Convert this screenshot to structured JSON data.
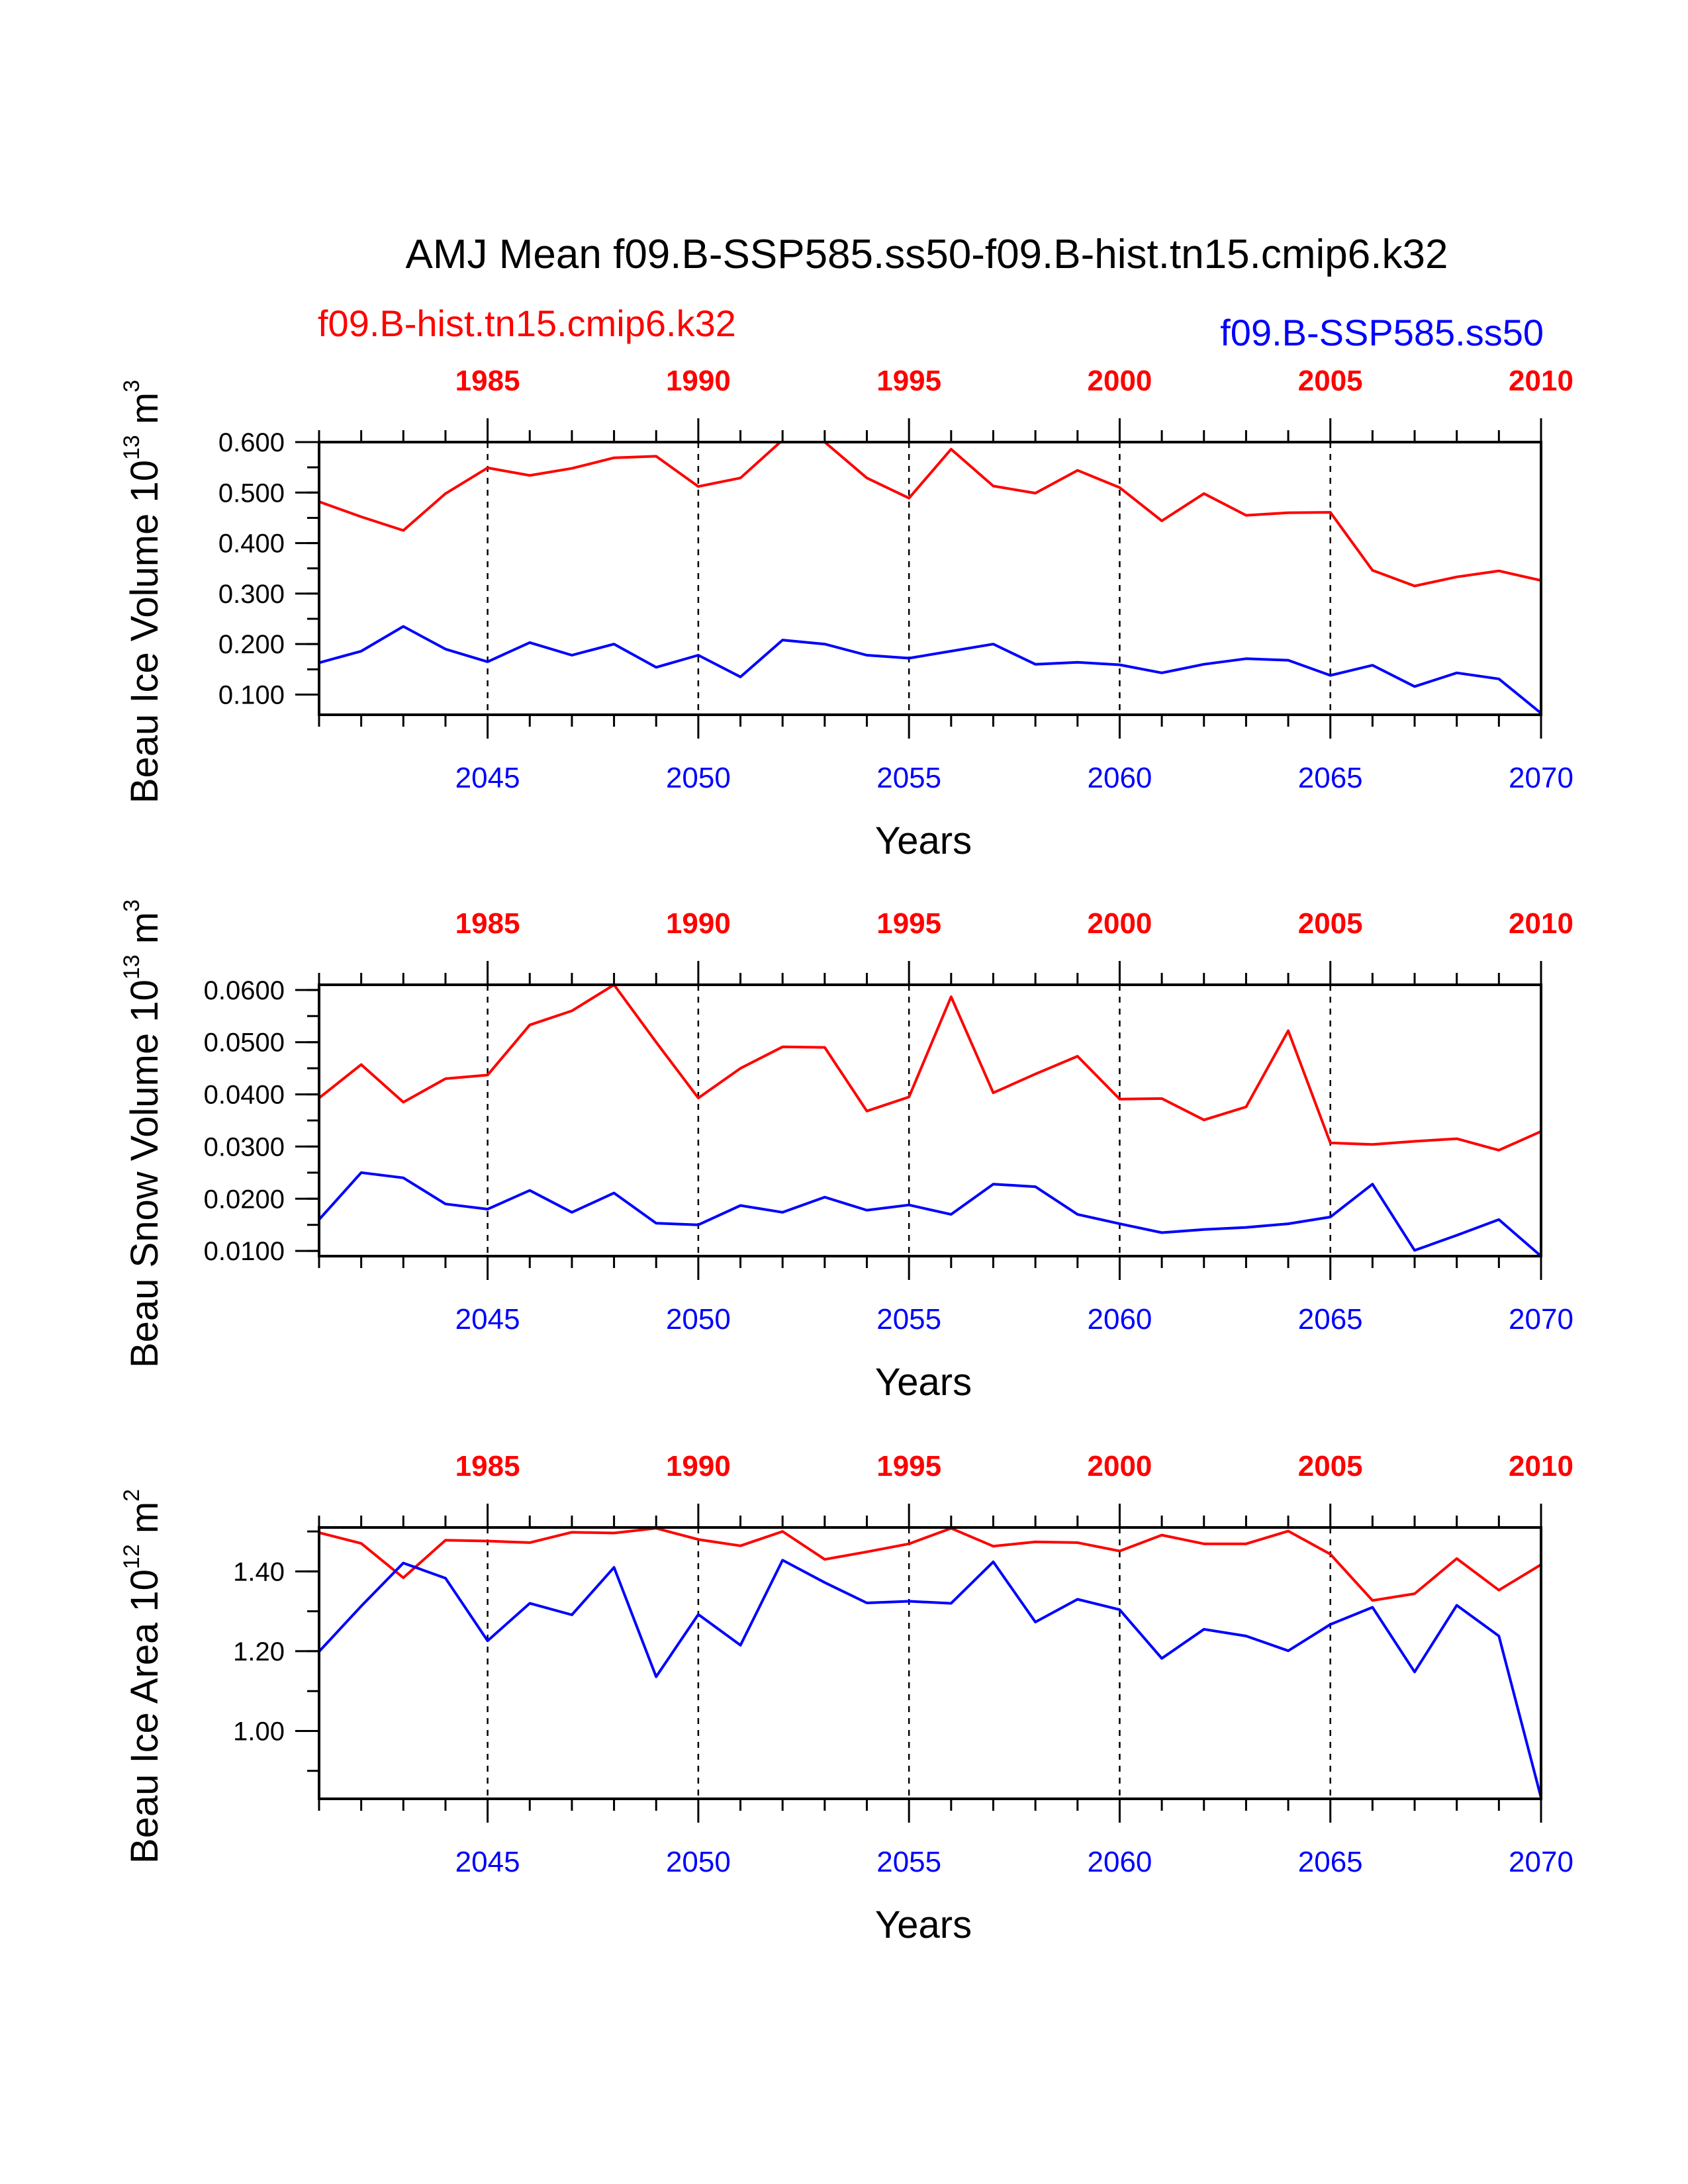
{
  "title": "AMJ Mean f09.B-SSP585.ss50-f09.B-hist.tn15.cmip6.k32",
  "legend": {
    "left_label": "f09.B-hist.tn15.cmip6.k32",
    "right_label": "f09.B-SSP585.ss50"
  },
  "colors": {
    "hist": "#ff0000",
    "ssp": "#0000ff",
    "axis": "#000000"
  },
  "chart_data": [
    {
      "type": "line",
      "ylabel": {
        "main": "Beau Ice Volume 10",
        "sup1": "13",
        "mid": " m",
        "sup2": "3"
      },
      "xlabel": "Years",
      "ylim": [
        0.06,
        0.6
      ],
      "yticks": [
        "0.100",
        "0.200",
        "0.300",
        "0.400",
        "0.500",
        "0.600"
      ],
      "bottom_axis": {
        "range": [
          2041,
          2070
        ],
        "tick_labels": [
          "2045",
          "2050",
          "2055",
          "2060",
          "2065",
          "2070"
        ]
      },
      "top_axis": {
        "range": [
          1981,
          2010
        ],
        "tick_labels": [
          "1985",
          "1990",
          "1995",
          "2000",
          "2005",
          "2010"
        ]
      },
      "series": [
        {
          "name": "f09.B-hist.tn15.cmip6.k32",
          "x_start": 1981,
          "values": [
            0.482,
            0.452,
            0.425,
            0.498,
            0.549,
            0.534,
            0.548,
            0.569,
            0.572,
            0.512,
            0.529,
            0.604,
            0.6,
            0.529,
            0.489,
            0.586,
            0.513,
            0.499,
            0.544,
            0.51,
            0.444,
            0.498,
            0.455,
            0.46,
            0.461,
            0.346,
            0.315,
            0.333,
            0.345,
            0.326
          ]
        },
        {
          "name": "f09.B-SSP585.ss50",
          "x_start": 2041,
          "values": [
            0.163,
            0.186,
            0.235,
            0.19,
            0.165,
            0.203,
            0.178,
            0.2,
            0.154,
            0.178,
            0.135,
            0.208,
            0.2,
            0.178,
            0.172,
            0.186,
            0.2,
            0.16,
            0.164,
            0.159,
            0.143,
            0.16,
            0.171,
            0.168,
            0.138,
            0.158,
            0.116,
            0.143,
            0.131,
            0.063
          ]
        }
      ]
    },
    {
      "type": "line",
      "ylabel": {
        "main": "Beau Snow Volume 10",
        "sup1": "13",
        "mid": " m",
        "sup2": "3"
      },
      "xlabel": "Years",
      "ylim": [
        0.009,
        0.061
      ],
      "yticks": [
        "0.0100",
        "0.0200",
        "0.0300",
        "0.0400",
        "0.0500",
        "0.0600"
      ],
      "bottom_axis": {
        "range": [
          2041,
          2070
        ],
        "tick_labels": [
          "2045",
          "2050",
          "2055",
          "2060",
          "2065",
          "2070"
        ]
      },
      "top_axis": {
        "range": [
          1981,
          2010
        ],
        "tick_labels": [
          "1985",
          "1990",
          "1995",
          "2000",
          "2005",
          "2010"
        ]
      },
      "series": [
        {
          "name": "f09.B-hist.tn15.cmip6.k32",
          "x_start": 1981,
          "values": [
            0.0393,
            0.0457,
            0.0385,
            0.043,
            0.0437,
            0.0533,
            0.056,
            0.061,
            0.05,
            0.0393,
            0.045,
            0.0491,
            0.049,
            0.0368,
            0.0395,
            0.0587,
            0.0403,
            0.0439,
            0.0473,
            0.0391,
            0.0392,
            0.0351,
            0.0376,
            0.0522,
            0.0307,
            0.0304,
            0.031,
            0.0315,
            0.0293,
            0.0329
          ]
        },
        {
          "name": "f09.B-SSP585.ss50",
          "x_start": 2041,
          "values": [
            0.016,
            0.025,
            0.024,
            0.019,
            0.018,
            0.0216,
            0.0174,
            0.0211,
            0.0153,
            0.015,
            0.0187,
            0.0174,
            0.0203,
            0.0178,
            0.0188,
            0.017,
            0.0228,
            0.0223,
            0.017,
            0.0152,
            0.0135,
            0.0141,
            0.0145,
            0.0152,
            0.0165,
            0.0228,
            0.0101,
            0.013,
            0.016,
            0.009
          ]
        }
      ]
    },
    {
      "type": "line",
      "ylabel": {
        "main": "Beau Ice Area 10",
        "sup1": "12",
        "mid": " m",
        "sup2": "2"
      },
      "xlabel": "Years",
      "ylim": [
        0.83,
        1.51
      ],
      "yticks": [
        "1.00",
        "1.20",
        "1.40"
      ],
      "bottom_axis": {
        "range": [
          2041,
          2070
        ],
        "tick_labels": [
          "2045",
          "2050",
          "2055",
          "2060",
          "2065",
          "2070"
        ]
      },
      "top_axis": {
        "range": [
          1981,
          2010
        ],
        "tick_labels": [
          "1985",
          "1990",
          "1995",
          "2000",
          "2005",
          "2010"
        ]
      },
      "series": [
        {
          "name": "f09.B-hist.tn15.cmip6.k32",
          "x_start": 1981,
          "values": [
            1.497,
            1.47,
            1.384,
            1.478,
            1.476,
            1.472,
            1.498,
            1.496,
            1.508,
            1.48,
            1.464,
            1.5,
            1.43,
            1.449,
            1.469,
            1.508,
            1.463,
            1.474,
            1.472,
            1.451,
            1.491,
            1.469,
            1.469,
            1.501,
            1.443,
            1.327,
            1.344,
            1.432,
            1.353,
            1.417
          ]
        },
        {
          "name": "f09.B-SSP585.ss50",
          "x_start": 2041,
          "values": [
            1.199,
            1.313,
            1.421,
            1.383,
            1.226,
            1.32,
            1.291,
            1.41,
            1.136,
            1.292,
            1.215,
            1.428,
            1.372,
            1.321,
            1.325,
            1.32,
            1.424,
            1.273,
            1.33,
            1.304,
            1.182,
            1.255,
            1.238,
            1.201,
            1.267,
            1.31,
            1.148,
            1.315,
            1.238,
            0.833
          ]
        }
      ]
    }
  ]
}
